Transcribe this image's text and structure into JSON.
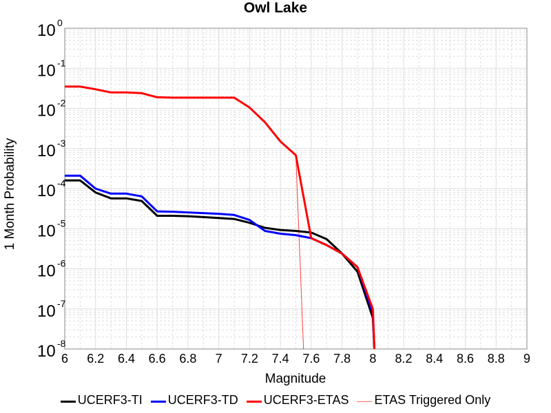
{
  "chart_data": {
    "type": "line",
    "title": "Owl Lake",
    "xlabel": "Magnitude",
    "ylabel": "1 Month Probability",
    "xlim": [
      6,
      9
    ],
    "ylim": [
      1e-08,
      1
    ],
    "yscale": "log",
    "grid": true,
    "legend_position": "bottom",
    "x_ticks": [
      "6",
      "6.2",
      "6.4",
      "6.6",
      "6.8",
      "7",
      "7.2",
      "7.4",
      "7.6",
      "7.8",
      "8",
      "8.2",
      "8.4",
      "8.6",
      "8.8",
      "9"
    ],
    "y_ticks": [
      {
        "base": "10",
        "exp": "0"
      },
      {
        "base": "10",
        "exp": "-1"
      },
      {
        "base": "10",
        "exp": "-2"
      },
      {
        "base": "10",
        "exp": "-3"
      },
      {
        "base": "10",
        "exp": "-4"
      },
      {
        "base": "10",
        "exp": "-5"
      },
      {
        "base": "10",
        "exp": "-6"
      },
      {
        "base": "10",
        "exp": "-7"
      },
      {
        "base": "10",
        "exp": "-8"
      }
    ],
    "series": [
      {
        "name": "UCERF3-TI",
        "color": "#000000",
        "width": 3,
        "x": [
          6.0,
          6.1,
          6.2,
          6.3,
          6.4,
          6.5,
          6.6,
          6.7,
          6.8,
          6.9,
          7.0,
          7.1,
          7.2,
          7.3,
          7.4,
          7.5,
          7.6,
          7.7,
          7.8,
          7.9,
          8.0,
          8.01
        ],
        "y": [
          0.00016,
          0.00016,
          8e-05,
          5.7e-05,
          5.7e-05,
          4.9e-05,
          2.1e-05,
          2.1e-05,
          2.05e-05,
          1.95e-05,
          1.85e-05,
          1.75e-05,
          1.4e-05,
          1.05e-05,
          9.3e-06,
          8.8e-06,
          8e-06,
          5.5e-06,
          2.4e-06,
          8.5e-07,
          6e-08,
          1e-08
        ]
      },
      {
        "name": "UCERF3-TD",
        "color": "#0000ff",
        "width": 3,
        "x": [
          6.0,
          6.1,
          6.2,
          6.3,
          6.4,
          6.5,
          6.6,
          6.7,
          6.8,
          6.9,
          7.0,
          7.1,
          7.2,
          7.3,
          7.4,
          7.5,
          7.6,
          7.7,
          7.8,
          7.9,
          8.0,
          8.01
        ],
        "y": [
          0.00021,
          0.00021,
          0.0001,
          7.5e-05,
          7.5e-05,
          6.4e-05,
          2.7e-05,
          2.65e-05,
          2.55e-05,
          2.45e-05,
          2.35e-05,
          2.2e-05,
          1.65e-05,
          8.8e-06,
          7.5e-06,
          6.9e-06,
          5.8e-06,
          3.9e-06,
          2.4e-06,
          1.1e-06,
          8e-08,
          1e-08
        ]
      },
      {
        "name": "UCERF3-ETAS",
        "color": "#ff0000",
        "width": 3,
        "x": [
          6.0,
          6.1,
          6.2,
          6.3,
          6.4,
          6.5,
          6.6,
          6.7,
          6.8,
          6.9,
          7.0,
          7.1,
          7.2,
          7.3,
          7.4,
          7.5,
          7.6,
          7.7,
          7.8,
          7.9,
          8.0,
          8.01
        ],
        "y": [
          0.035,
          0.035,
          0.03,
          0.025,
          0.025,
          0.024,
          0.019,
          0.0185,
          0.0185,
          0.0185,
          0.0185,
          0.0185,
          0.0105,
          0.0045,
          0.0015,
          0.00068,
          5.8e-06,
          3.9e-06,
          2.4e-06,
          1.1e-06,
          1e-07,
          1e-08
        ]
      },
      {
        "name": "ETAS Triggered Only",
        "color": "#ff0000",
        "width": 1,
        "x": [
          6.0,
          6.1,
          6.2,
          6.3,
          6.4,
          6.5,
          6.6,
          6.7,
          6.8,
          6.9,
          7.0,
          7.1,
          7.2,
          7.3,
          7.4,
          7.5,
          7.55
        ],
        "y": [
          0.035,
          0.035,
          0.03,
          0.025,
          0.025,
          0.024,
          0.019,
          0.0185,
          0.0185,
          0.0185,
          0.0185,
          0.0185,
          0.0105,
          0.0045,
          0.0015,
          0.00068,
          1e-08
        ]
      }
    ]
  }
}
